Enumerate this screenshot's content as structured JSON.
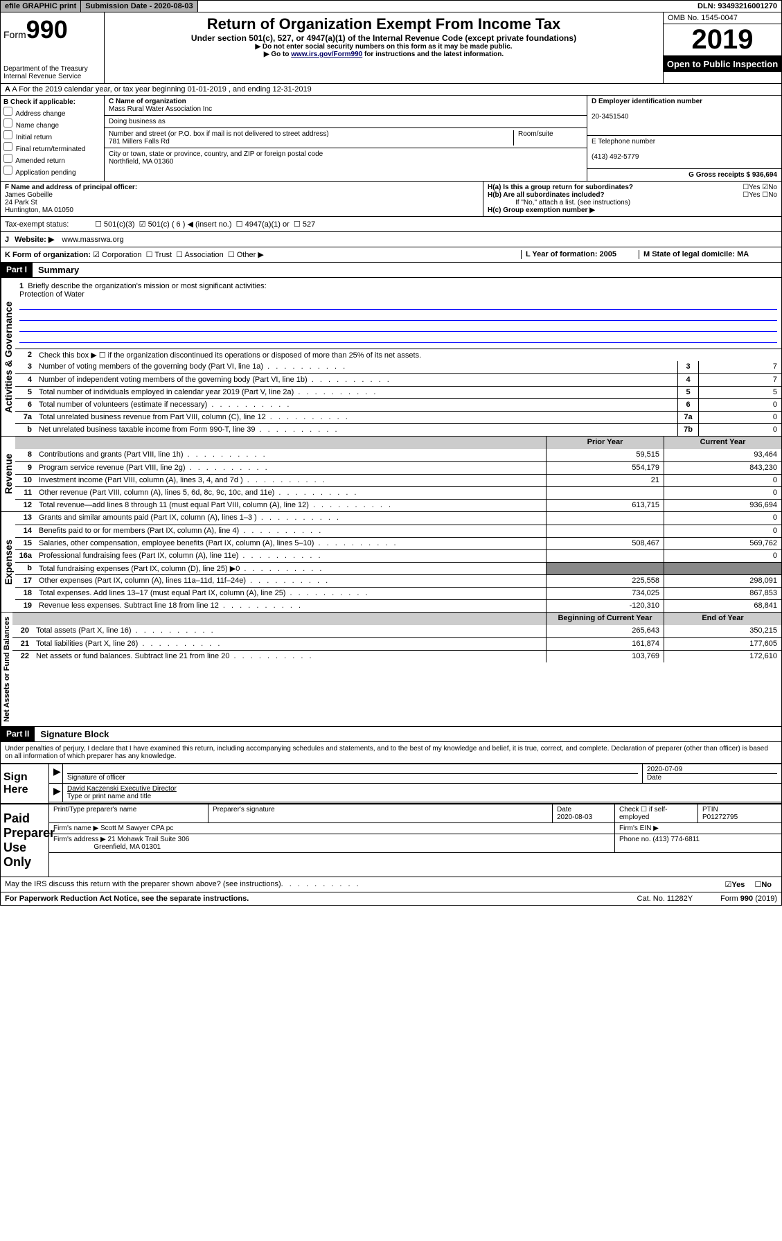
{
  "topbar": {
    "efile": "efile GRAPHIC print",
    "submission_label": "Submission Date - 2020-08-03",
    "dln": "DLN: 93493216001270"
  },
  "header": {
    "form_prefix": "Form",
    "form_num": "990",
    "dept": "Department of the Treasury\nInternal Revenue Service",
    "title": "Return of Organization Exempt From Income Tax",
    "subtitle": "Under section 501(c), 527, or 4947(a)(1) of the Internal Revenue Code (except private foundations)",
    "note1": "▶ Do not enter social security numbers on this form as it may be made public.",
    "note2_pre": "▶ Go to ",
    "note2_link": "www.irs.gov/Form990",
    "note2_post": " for instructions and the latest information.",
    "omb": "OMB No. 1545-0047",
    "year": "2019",
    "inspection": "Open to Public Inspection"
  },
  "section_a": "A For the 2019 calendar year, or tax year beginning 01-01-2019   , and ending 12-31-2019",
  "section_b": {
    "label": "B Check if applicable:",
    "items": [
      "Address change",
      "Name change",
      "Initial return",
      "Final return/terminated",
      "Amended return",
      "Application pending"
    ]
  },
  "section_c": {
    "name_label": "C Name of organization",
    "name": "Mass Rural Water Association Inc",
    "dba_label": "Doing business as",
    "addr_label": "Number and street (or P.O. box if mail is not delivered to street address)",
    "room_label": "Room/suite",
    "addr": "781 Millers Falls Rd",
    "city_label": "City or town, state or province, country, and ZIP or foreign postal code",
    "city": "Northfield, MA  01360"
  },
  "section_d": {
    "label": "D Employer identification number",
    "ein": "20-3451540",
    "tel_label": "E Telephone number",
    "tel": "(413) 492-5779",
    "gross_label": "G Gross receipts $ 936,694"
  },
  "section_f": {
    "label": "F  Name and address of principal officer:",
    "name": "James Gobeille",
    "addr1": "24 Park St",
    "addr2": "Huntington, MA  01050"
  },
  "section_h": {
    "ha": "H(a)  Is this a group return for subordinates?",
    "hb": "H(b)  Are all subordinates included?",
    "hb_note": "If \"No,\" attach a list. (see instructions)",
    "hc": "H(c)  Group exemption number ▶"
  },
  "tax_status": {
    "label": "Tax-exempt status:",
    "opt1": "501(c)(3)",
    "opt2": "501(c) ( 6 ) ◀ (insert no.)",
    "opt3": "4947(a)(1) or",
    "opt4": "527"
  },
  "section_j": {
    "label": "J",
    "website_label": "Website: ▶",
    "website": "www.massrwa.org"
  },
  "section_k": {
    "label": "K Form of organization:",
    "opts": [
      "Corporation",
      "Trust",
      "Association",
      "Other ▶"
    ],
    "l_label": "L Year of formation: 2005",
    "m_label": "M State of legal domicile: MA"
  },
  "part1": {
    "header": "Part I",
    "title": "Summary",
    "vert_ag": "Activities & Governance",
    "vert_rev": "Revenue",
    "vert_exp": "Expenses",
    "vert_net": "Net Assets or Fund Balances",
    "line1_label": "Briefly describe the organization's mission or most significant activities:",
    "line1_text": "Protection of Water",
    "line2": "Check this box ▶ ☐  if the organization discontinued its operations or disposed of more than 25% of its net assets.",
    "lines_ag": [
      {
        "n": "3",
        "t": "Number of voting members of the governing body (Part VI, line 1a)",
        "box": "3",
        "v": "7"
      },
      {
        "n": "4",
        "t": "Number of independent voting members of the governing body (Part VI, line 1b)",
        "box": "4",
        "v": "7"
      },
      {
        "n": "5",
        "t": "Total number of individuals employed in calendar year 2019 (Part V, line 2a)",
        "box": "5",
        "v": "5"
      },
      {
        "n": "6",
        "t": "Total number of volunteers (estimate if necessary)",
        "box": "6",
        "v": "0"
      },
      {
        "n": "7a",
        "t": "Total unrelated business revenue from Part VIII, column (C), line 12",
        "box": "7a",
        "v": "0"
      },
      {
        "n": "b",
        "t": "Net unrelated business taxable income from Form 990-T, line 39",
        "box": "7b",
        "v": "0"
      }
    ],
    "col_prior": "Prior Year",
    "col_current": "Current Year",
    "lines_rev": [
      {
        "n": "8",
        "t": "Contributions and grants (Part VIII, line 1h)",
        "p": "59,515",
        "c": "93,464"
      },
      {
        "n": "9",
        "t": "Program service revenue (Part VIII, line 2g)",
        "p": "554,179",
        "c": "843,230"
      },
      {
        "n": "10",
        "t": "Investment income (Part VIII, column (A), lines 3, 4, and 7d )",
        "p": "21",
        "c": "0"
      },
      {
        "n": "11",
        "t": "Other revenue (Part VIII, column (A), lines 5, 6d, 8c, 9c, 10c, and 11e)",
        "p": "",
        "c": "0"
      },
      {
        "n": "12",
        "t": "Total revenue—add lines 8 through 11 (must equal Part VIII, column (A), line 12)",
        "p": "613,715",
        "c": "936,694"
      }
    ],
    "lines_exp": [
      {
        "n": "13",
        "t": "Grants and similar amounts paid (Part IX, column (A), lines 1–3 )",
        "p": "",
        "c": "0"
      },
      {
        "n": "14",
        "t": "Benefits paid to or for members (Part IX, column (A), line 4)",
        "p": "",
        "c": "0"
      },
      {
        "n": "15",
        "t": "Salaries, other compensation, employee benefits (Part IX, column (A), lines 5–10)",
        "p": "508,467",
        "c": "569,762"
      },
      {
        "n": "16a",
        "t": "Professional fundraising fees (Part IX, column (A), line 11e)",
        "p": "",
        "c": "0"
      },
      {
        "n": "b",
        "t": "Total fundraising expenses (Part IX, column (D), line 25) ▶0",
        "p": "",
        "c": "",
        "shaded": true
      },
      {
        "n": "17",
        "t": "Other expenses (Part IX, column (A), lines 11a–11d, 11f–24e)",
        "p": "225,558",
        "c": "298,091"
      },
      {
        "n": "18",
        "t": "Total expenses. Add lines 13–17 (must equal Part IX, column (A), line 25)",
        "p": "734,025",
        "c": "867,853"
      },
      {
        "n": "19",
        "t": "Revenue less expenses. Subtract line 18 from line 12",
        "p": "-120,310",
        "c": "68,841"
      }
    ],
    "col_begin": "Beginning of Current Year",
    "col_end": "End of Year",
    "lines_net": [
      {
        "n": "20",
        "t": "Total assets (Part X, line 16)",
        "p": "265,643",
        "c": "350,215"
      },
      {
        "n": "21",
        "t": "Total liabilities (Part X, line 26)",
        "p": "161,874",
        "c": "177,605"
      },
      {
        "n": "22",
        "t": "Net assets or fund balances. Subtract line 21 from line 20",
        "p": "103,769",
        "c": "172,610"
      }
    ]
  },
  "part2": {
    "header": "Part II",
    "title": "Signature Block",
    "declare": "Under penalties of perjury, I declare that I have examined this return, including accompanying schedules and statements, and to the best of my knowledge and belief, it is true, correct, and complete. Declaration of preparer (other than officer) is based on all information of which preparer has any knowledge.",
    "sign_here": "Sign Here",
    "sig_officer": "Signature of officer",
    "sig_date": "2020-07-09",
    "date_label": "Date",
    "officer_name": "David Kaczenski  Executive Director",
    "type_name": "Type or print name and title",
    "paid_label": "Paid Preparer Use Only",
    "prep_name_label": "Print/Type preparer's name",
    "prep_sig_label": "Preparer's signature",
    "prep_date_label": "Date",
    "prep_date": "2020-08-03",
    "check_label": "Check ☐ if self-employed",
    "ptin_label": "PTIN",
    "ptin": "P01272795",
    "firm_name_label": "Firm's name    ▶",
    "firm_name": "Scott M Sawyer CPA pc",
    "firm_ein_label": "Firm's EIN ▶",
    "firm_addr_label": "Firm's address ▶",
    "firm_addr1": "21 Mohawk Trail Suite 306",
    "firm_addr2": "Greenfield, MA  01301",
    "phone_label": "Phone no. (413) 774-6811",
    "discuss": "May the IRS discuss this return with the preparer shown above? (see instructions)",
    "yes": "Yes",
    "no": "No"
  },
  "footer": {
    "paperwork": "For Paperwork Reduction Act Notice, see the separate instructions.",
    "cat": "Cat. No. 11282Y",
    "form": "Form 990 (2019)"
  }
}
